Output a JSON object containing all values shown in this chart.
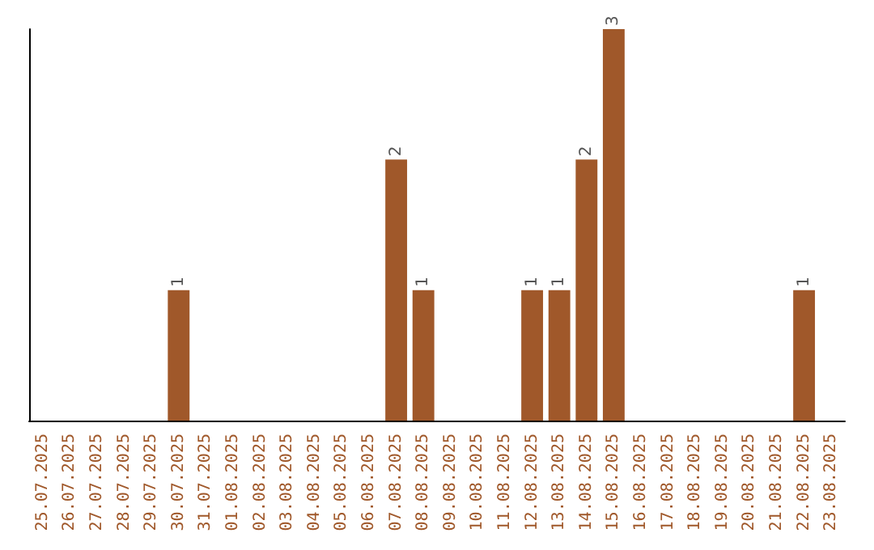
{
  "chart_data": {
    "type": "bar",
    "categories": [
      "25.07.2025",
      "26.07.2025",
      "27.07.2025",
      "28.07.2025",
      "29.07.2025",
      "30.07.2025",
      "31.07.2025",
      "01.08.2025",
      "02.08.2025",
      "03.08.2025",
      "04.08.2025",
      "05.08.2025",
      "06.08.2025",
      "07.08.2025",
      "08.08.2025",
      "09.08.2025",
      "10.08.2025",
      "11.08.2025",
      "12.08.2025",
      "13.08.2025",
      "14.08.2025",
      "15.08.2025",
      "16.08.2025",
      "17.08.2025",
      "18.08.2025",
      "19.08.2025",
      "20.08.2025",
      "21.08.2025",
      "22.08.2025",
      "23.08.2025"
    ],
    "values": [
      0,
      0,
      0,
      0,
      0,
      1,
      0,
      0,
      0,
      0,
      0,
      0,
      0,
      2,
      1,
      0,
      0,
      0,
      1,
      1,
      2,
      3,
      0,
      0,
      0,
      0,
      0,
      0,
      1,
      0
    ],
    "value_labels": [
      null,
      null,
      null,
      null,
      null,
      "1",
      null,
      null,
      null,
      null,
      null,
      null,
      null,
      "2",
      "1",
      null,
      null,
      null,
      "1",
      "1",
      "2",
      "3",
      null,
      null,
      null,
      null,
      null,
      null,
      "1",
      null
    ],
    "color": "#a0582a",
    "tick_labels": "x",
    "grid": false
  }
}
